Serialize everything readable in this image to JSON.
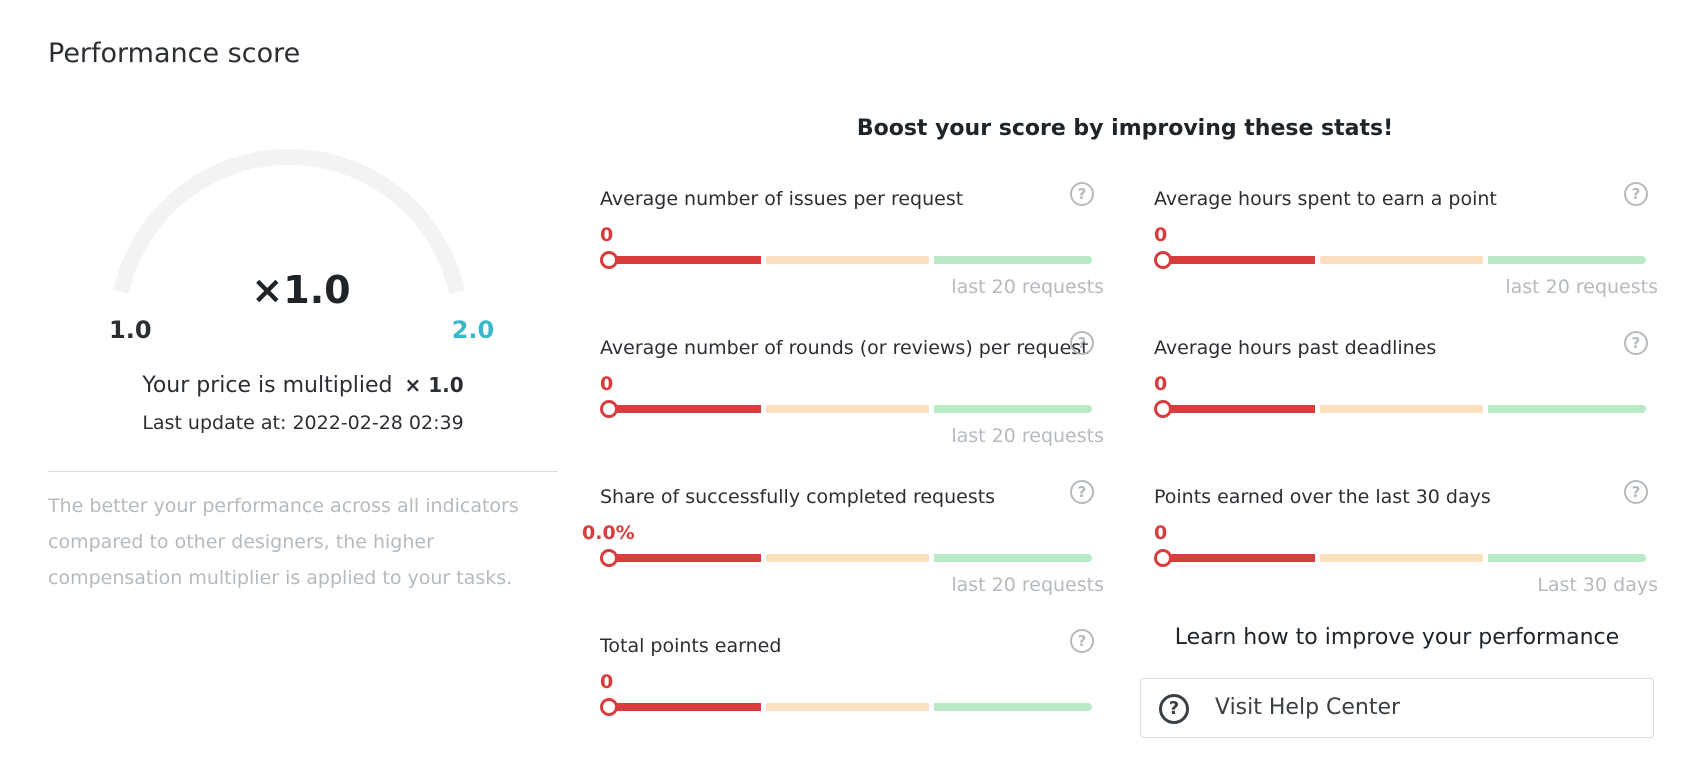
{
  "page": {
    "title": "Performance score"
  },
  "gauge": {
    "value_label": "×1.0",
    "min_label": "1.0",
    "max_label": "2.0",
    "level": 0.0,
    "track_color": "#f2f3f5",
    "max_color": "#3bb8c9"
  },
  "price": {
    "text": "Your price is multiplied",
    "multiplier": "× 1.0"
  },
  "last_update": "Last update at: 2022-02-28 02:39",
  "description": "The better your performance across all indicators compared to other designers, the higher compensation multiplier is applied to your tasks.",
  "boost_title": "Boost your score by improving these stats!",
  "stats": [
    {
      "label": "Average number of issues per request",
      "value": "0",
      "caption": "last 20 requests",
      "level": 0
    },
    {
      "label": "Average hours spent to earn a point",
      "value": "0",
      "caption": "last 20 requests",
      "level": 0
    },
    {
      "label": "Average number of rounds (or reviews) per request",
      "value": "0",
      "caption": "last 20 requests",
      "level": 0
    },
    {
      "label": "Average hours past deadlines",
      "value": "0",
      "caption": "",
      "level": 0
    },
    {
      "label": "Share of successfully completed requests",
      "value": "0.0%",
      "caption": "last 20 requests",
      "level": 0
    },
    {
      "label": "Points earned over the last 30 days",
      "value": "0",
      "caption": "Last 30 days",
      "level": 0
    },
    {
      "label": "Total points earned",
      "value": "0",
      "caption": "",
      "level": 0
    }
  ],
  "help_icon_glyph": "?",
  "learn": {
    "title": "Learn how to improve your performance",
    "button_label": "Visit Help Center",
    "button_icon": "question-circle-icon"
  },
  "colors": {
    "bad": "#d93c3c",
    "medium": "#fbe0bf",
    "good": "#b9e9c6"
  }
}
